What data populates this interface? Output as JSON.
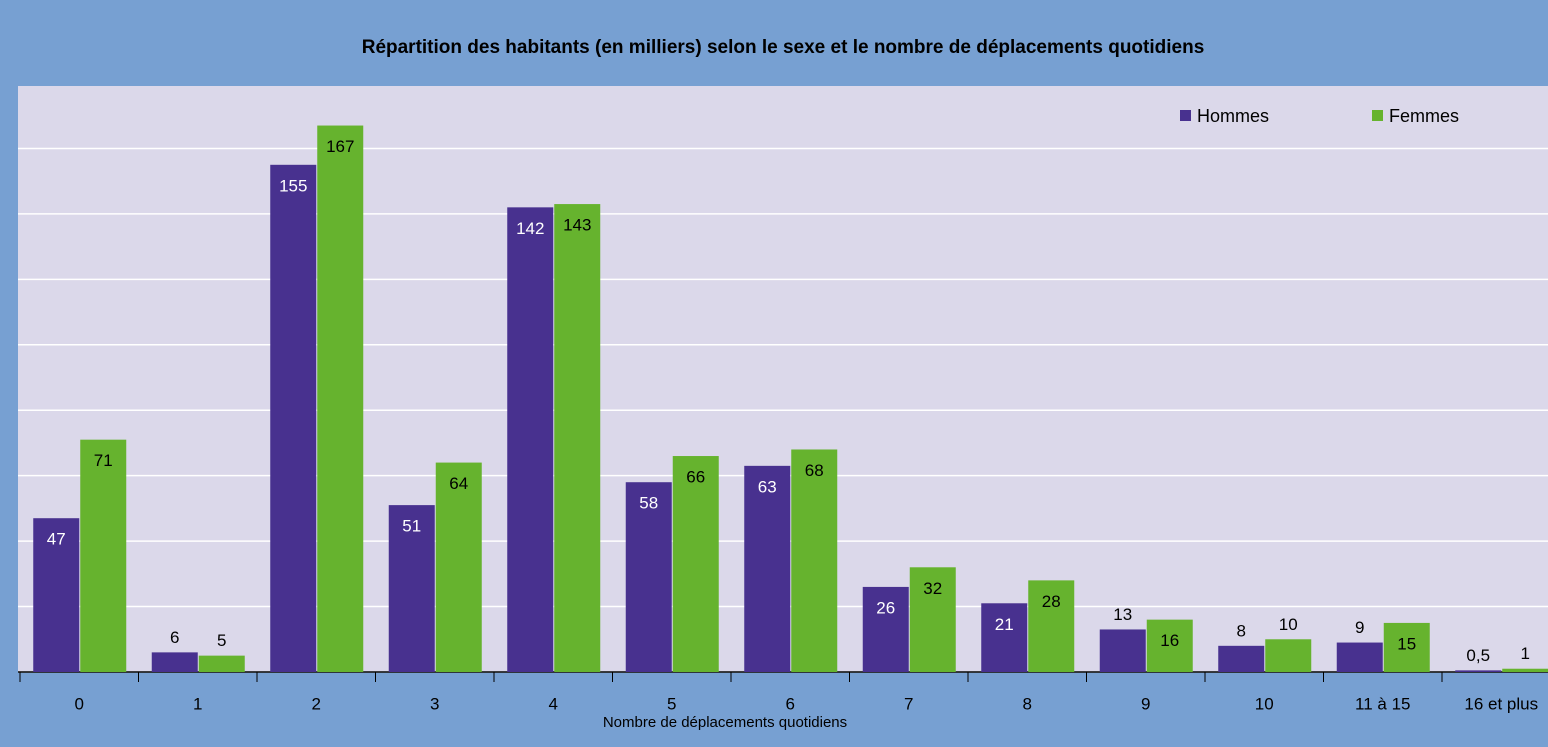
{
  "chart_data": {
    "type": "bar",
    "title": "Répartition des habitants (en milliers) selon le sexe et le nombre de déplacements quotidiens",
    "x_label": "Nombre de déplacements quotidiens",
    "categories": [
      "0",
      "1",
      "2",
      "3",
      "4",
      "5",
      "6",
      "7",
      "8",
      "9",
      "10",
      "11 à 15",
      "16 et plus"
    ],
    "series": [
      {
        "name": "Hommes",
        "color": "#48318f",
        "values": [
          47,
          6,
          155,
          51,
          142,
          58,
          63,
          26,
          21,
          13,
          8,
          9,
          0.5
        ],
        "value_labels": [
          "47",
          "6",
          "155",
          "51",
          "142",
          "58",
          "63",
          "26",
          "21",
          "13",
          "8",
          "9",
          "0,5"
        ]
      },
      {
        "name": "Femmes",
        "color": "#66b32e",
        "values": [
          71,
          5,
          167,
          64,
          143,
          66,
          68,
          32,
          28,
          16,
          10,
          15,
          1
        ]
      }
    ],
    "ylim": [
      0,
      180
    ],
    "yticks": [
      0,
      20,
      40,
      60,
      80,
      100,
      120,
      140,
      160,
      180
    ],
    "grid": true,
    "legend": "top-right"
  }
}
